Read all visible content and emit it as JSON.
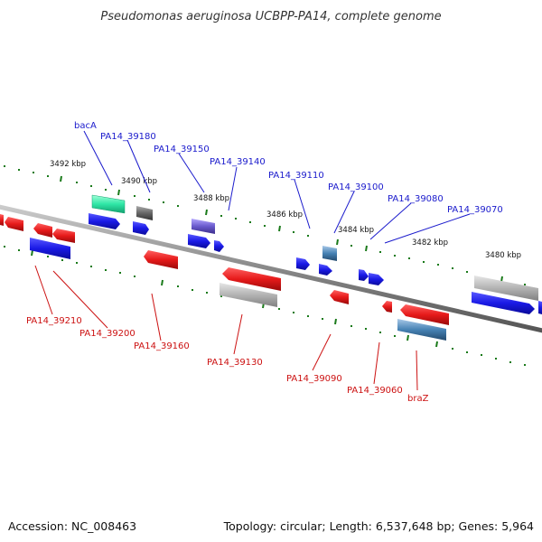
{
  "title": "Pseudomonas aeruginosa UCBPP-PA14, complete genome",
  "footer": {
    "accession": "Accession: NC_008463",
    "summary": "Topology: circular; Length: 6,537,648 bp; Genes: 5,964"
  },
  "colors": {
    "forward_gene": "#1a1ae6",
    "reverse_gene": "#e61a1a",
    "hypothetical_gene": "#b3b3b3",
    "track_line": "#777777",
    "tick_mark": "#1a7a1a",
    "label_top": "#1a1acc",
    "label_bottom": "#cc1111"
  },
  "scale_ticks": [
    "3492 kbp",
    "3490 kbp",
    "3488 kbp",
    "3486 kbp",
    "3484 kbp",
    "3482 kbp",
    "3480 kbp"
  ],
  "forward_labels": [
    "bacA",
    "PA14_39180",
    "PA14_39150",
    "PA14_39140",
    "PA14_39110",
    "PA14_39100",
    "PA14_39080",
    "PA14_39070"
  ],
  "reverse_labels": [
    "PA14_39210",
    "PA14_39200",
    "PA14_39160",
    "PA14_39130",
    "PA14_39090",
    "PA14_39060",
    "braZ"
  ]
}
